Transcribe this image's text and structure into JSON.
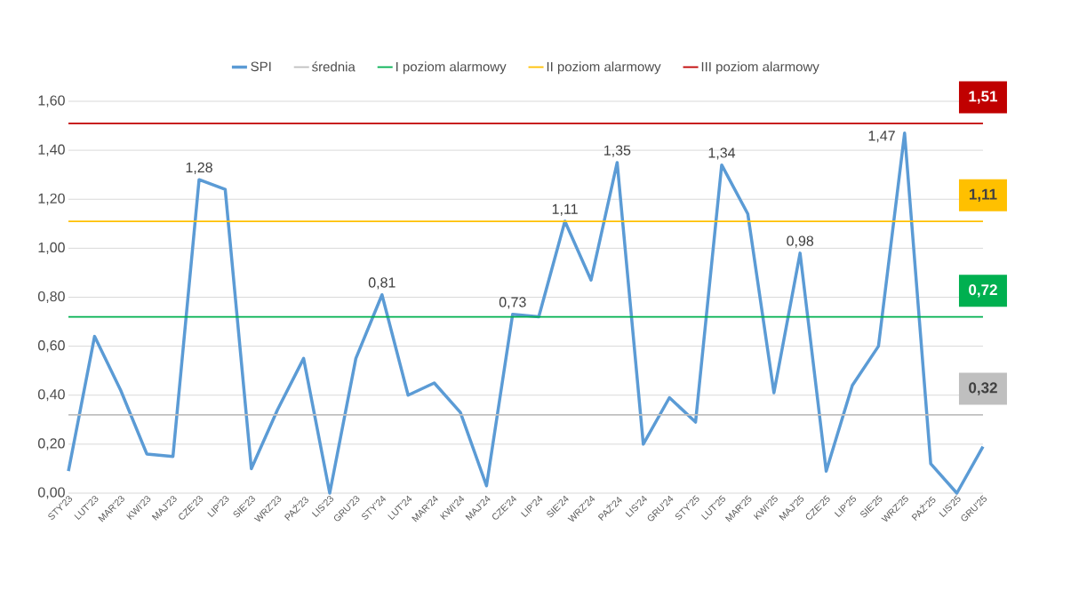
{
  "chart_data": {
    "type": "line",
    "categories": [
      "STY'23",
      "LUT'23",
      "MAR'23",
      "KWI'23",
      "MAJ'23",
      "CZE'23",
      "LIP'23",
      "SIE'23",
      "WRZ'23",
      "PAŹ'23",
      "LIS'23",
      "GRU'23",
      "STY'24",
      "LUT'24",
      "MAR'24",
      "KWI'24",
      "MAJ'24",
      "CZE'24",
      "LIP'24",
      "SIE'24",
      "WRZ'24",
      "PAŹ'24",
      "LIS'24",
      "GRU'24",
      "STY'25",
      "LUT'25",
      "MAR'25",
      "KWI'25",
      "MAJ'25",
      "CZE'25",
      "LIP'25",
      "SIE'25",
      "WRZ'25",
      "PAŹ'25",
      "LIS'25",
      "GRU'25"
    ],
    "series": [
      {
        "name": "SPI",
        "color": "#5b9bd5",
        "values": [
          0.09,
          0.64,
          0.42,
          0.16,
          0.15,
          1.28,
          1.24,
          0.1,
          0.34,
          0.55,
          0.0,
          0.55,
          0.81,
          0.4,
          0.45,
          0.33,
          0.03,
          0.73,
          0.72,
          1.11,
          0.87,
          1.35,
          0.2,
          0.39,
          0.29,
          1.34,
          1.14,
          0.41,
          0.98,
          0.09,
          0.44,
          0.6,
          1.47,
          0.12,
          0.0,
          0.19
        ],
        "value_labels": [
          null,
          null,
          null,
          null,
          null,
          "1,28",
          null,
          null,
          null,
          null,
          null,
          null,
          "0,81",
          null,
          null,
          null,
          null,
          "0,73",
          null,
          "1,11",
          null,
          "1,35",
          null,
          null,
          null,
          "1,34",
          null,
          null,
          "0,98",
          null,
          null,
          null,
          "1,47",
          null,
          null,
          null
        ]
      },
      {
        "name": "średnia",
        "color": "#bfbfbf",
        "values": [
          0.32,
          0.32,
          0.32,
          0.32,
          0.32,
          0.32,
          0.32,
          0.32,
          0.32,
          0.32,
          0.32,
          0.32,
          0.32,
          0.32,
          0.32,
          0.32,
          0.32,
          0.32,
          0.32,
          0.32,
          0.32,
          0.32,
          0.32,
          0.32,
          0.32,
          0.32,
          0.32,
          0.32,
          0.32,
          0.32,
          0.32,
          0.32,
          0.32,
          0.32,
          0.32,
          0.32
        ],
        "value_labels": [
          null,
          null,
          null,
          null,
          null,
          null,
          null,
          null,
          null,
          null,
          null,
          null,
          null,
          null,
          null,
          null,
          null,
          null,
          null,
          null,
          null,
          null,
          null,
          null,
          null,
          null,
          null,
          null,
          null,
          null,
          null,
          null,
          null,
          null,
          null,
          "0,32"
        ]
      },
      {
        "name": "I poziom alarmowy",
        "color": "#00b050",
        "values": [
          0.72,
          0.72,
          0.72,
          0.72,
          0.72,
          0.72,
          0.72,
          0.72,
          0.72,
          0.72,
          0.72,
          0.72,
          0.72,
          0.72,
          0.72,
          0.72,
          0.72,
          0.72,
          0.72,
          0.72,
          0.72,
          0.72,
          0.72,
          0.72,
          0.72,
          0.72,
          0.72,
          0.72,
          0.72,
          0.72,
          0.72,
          0.72,
          0.72,
          0.72,
          0.72,
          0.72
        ],
        "value_labels": [
          null,
          null,
          null,
          null,
          null,
          null,
          null,
          null,
          null,
          null,
          null,
          null,
          null,
          null,
          null,
          null,
          null,
          null,
          null,
          null,
          null,
          null,
          null,
          null,
          null,
          null,
          null,
          null,
          null,
          null,
          null,
          null,
          null,
          null,
          null,
          "0,72"
        ]
      },
      {
        "name": "II poziom alarmowy",
        "color": "#ffc000",
        "values": [
          1.11,
          1.11,
          1.11,
          1.11,
          1.11,
          1.11,
          1.11,
          1.11,
          1.11,
          1.11,
          1.11,
          1.11,
          1.11,
          1.11,
          1.11,
          1.11,
          1.11,
          1.11,
          1.11,
          1.11,
          1.11,
          1.11,
          1.11,
          1.11,
          1.11,
          1.11,
          1.11,
          1.11,
          1.11,
          1.11,
          1.11,
          1.11,
          1.11,
          1.11,
          1.11,
          1.11
        ],
        "value_labels": [
          null,
          null,
          null,
          null,
          null,
          null,
          null,
          null,
          null,
          null,
          null,
          null,
          null,
          null,
          null,
          null,
          null,
          null,
          null,
          null,
          null,
          null,
          null,
          null,
          null,
          null,
          null,
          null,
          null,
          null,
          null,
          null,
          null,
          null,
          null,
          "1,11"
        ]
      },
      {
        "name": "III poziom alarmowy",
        "color": "#c00000",
        "values": [
          1.51,
          1.51,
          1.51,
          1.51,
          1.51,
          1.51,
          1.51,
          1.51,
          1.51,
          1.51,
          1.51,
          1.51,
          1.51,
          1.51,
          1.51,
          1.51,
          1.51,
          1.51,
          1.51,
          1.51,
          1.51,
          1.51,
          1.51,
          1.51,
          1.51,
          1.51,
          1.51,
          1.51,
          1.51,
          1.51,
          1.51,
          1.51,
          1.51,
          1.51,
          1.51,
          1.51
        ],
        "value_labels": [
          null,
          null,
          null,
          null,
          null,
          null,
          null,
          null,
          null,
          null,
          null,
          null,
          null,
          null,
          null,
          null,
          null,
          null,
          null,
          null,
          null,
          null,
          null,
          null,
          null,
          null,
          null,
          null,
          null,
          null,
          null,
          null,
          null,
          null,
          null,
          "1,51"
        ]
      }
    ],
    "ylim": [
      0,
      1.6
    ],
    "yticks": [
      {
        "value": 0,
        "label": "0,00"
      },
      {
        "value": 0.2,
        "label": "0,20"
      },
      {
        "value": 0.4,
        "label": "0,40"
      },
      {
        "value": 0.6,
        "label": "0,60"
      },
      {
        "value": 0.8,
        "label": "0,80"
      },
      {
        "value": 1.0,
        "label": "1,00"
      },
      {
        "value": 1.2,
        "label": "1,20"
      },
      {
        "value": 1.4,
        "label": "1,40"
      },
      {
        "value": 1.6,
        "label": "1,60"
      }
    ],
    "grid": "y",
    "legend": "top",
    "marker": "none"
  }
}
